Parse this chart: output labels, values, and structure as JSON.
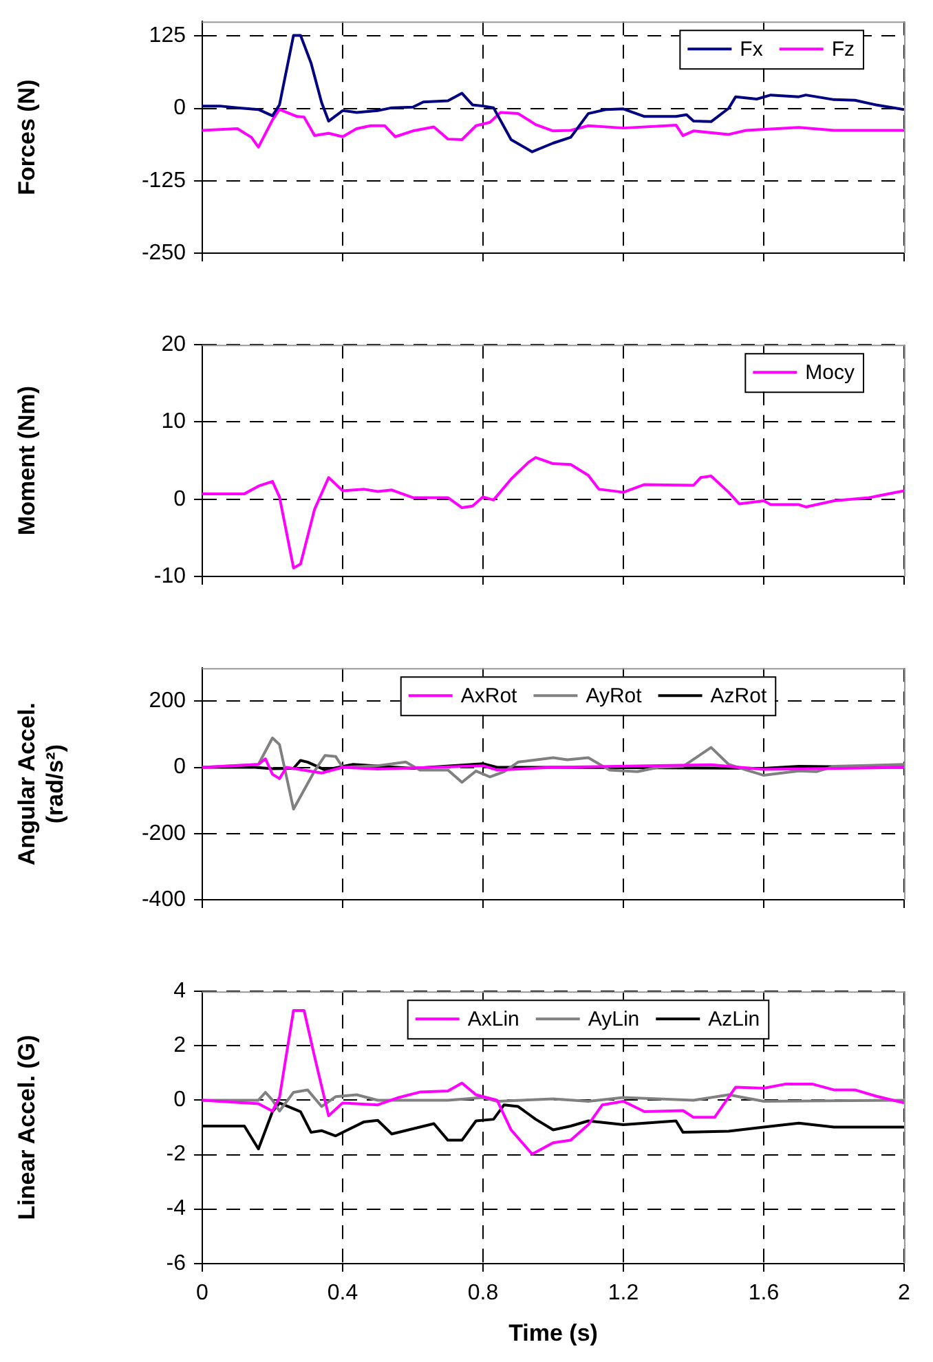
{
  "chart_data": [
    {
      "type": "line",
      "ylabel": "Forces (N)",
      "xlim": [
        0,
        2
      ],
      "xticks": [
        0,
        0.4,
        0.8,
        1.2,
        1.6,
        2
      ],
      "ylim": [
        -250,
        150
      ],
      "yticks": [
        -250,
        -125,
        0,
        125
      ],
      "grid": true,
      "legend": "top right",
      "tick_labels": "y",
      "marker": "none",
      "line_style": "solid",
      "series": [
        {
          "name": "Fx",
          "color": "#000080",
          "x": [
            0,
            0.05,
            0.1,
            0.16,
            0.2,
            0.22,
            0.26,
            0.28,
            0.31,
            0.34,
            0.36,
            0.4,
            0.44,
            0.5,
            0.54,
            0.6,
            0.63,
            0.7,
            0.74,
            0.77,
            0.8,
            0.83,
            0.88,
            0.94,
            1.0,
            1.05,
            1.1,
            1.15,
            1.2,
            1.26,
            1.35,
            1.38,
            1.4,
            1.45,
            1.5,
            1.52,
            1.58,
            1.62,
            1.7,
            1.72,
            1.8,
            1.86,
            1.92,
            2.0
          ],
          "values": [
            4,
            4,
            1,
            -2,
            -13,
            6,
            126,
            126,
            78,
            10,
            -22,
            -4,
            -7,
            -4,
            1,
            2,
            11,
            13,
            26,
            6,
            4,
            1,
            -54,
            -75,
            -60,
            -50,
            -9,
            -2,
            -1,
            -14,
            -14,
            -11,
            -22,
            -23,
            0,
            20,
            16,
            23,
            20,
            23,
            15,
            14,
            6,
            -2
          ]
        },
        {
          "name": "Fz",
          "color": "#ff00ff",
          "x": [
            0,
            0.1,
            0.14,
            0.16,
            0.2,
            0.22,
            0.27,
            0.29,
            0.32,
            0.36,
            0.4,
            0.44,
            0.48,
            0.52,
            0.55,
            0.6,
            0.66,
            0.7,
            0.74,
            0.78,
            0.82,
            0.85,
            0.9,
            0.95,
            1.0,
            1.05,
            1.1,
            1.2,
            1.35,
            1.37,
            1.4,
            1.5,
            1.55,
            1.7,
            1.8,
            2.0
          ],
          "values": [
            -38,
            -35,
            -50,
            -67,
            -20,
            -2,
            -14,
            -15,
            -47,
            -43,
            -49,
            -35,
            -30,
            -30,
            -49,
            -39,
            -32,
            -53,
            -54,
            -30,
            -24,
            -7,
            -9,
            -28,
            -39,
            -38,
            -30,
            -34,
            -29,
            -47,
            -39,
            -45,
            -38,
            -33,
            -38,
            -38
          ]
        }
      ]
    },
    {
      "type": "line",
      "ylabel": "Moment (Nm)",
      "xlim": [
        0,
        2
      ],
      "xticks": [
        0,
        0.4,
        0.8,
        1.2,
        1.6,
        2
      ],
      "ylim": [
        -10,
        20
      ],
      "yticks": [
        -10,
        0,
        10,
        20
      ],
      "grid": true,
      "legend": "top right",
      "tick_labels": "y",
      "marker": "none",
      "line_style": "solid",
      "series": [
        {
          "name": "Mocy",
          "color": "#ff00ff",
          "x": [
            0,
            0.12,
            0.16,
            0.2,
            0.22,
            0.26,
            0.28,
            0.32,
            0.36,
            0.4,
            0.46,
            0.5,
            0.54,
            0.6,
            0.7,
            0.74,
            0.77,
            0.8,
            0.83,
            0.88,
            0.93,
            0.95,
            1.0,
            1.05,
            1.1,
            1.13,
            1.2,
            1.26,
            1.4,
            1.42,
            1.45,
            1.5,
            1.53,
            1.6,
            1.62,
            1.7,
            1.72,
            1.8,
            1.9,
            2.0
          ],
          "values": [
            0.7,
            0.7,
            1.7,
            2.3,
            0.3,
            -8.9,
            -8.4,
            -1.3,
            2.8,
            1.1,
            1.3,
            1.0,
            1.2,
            0.2,
            0.2,
            -1.1,
            -0.9,
            0.3,
            -0.1,
            2.6,
            4.8,
            5.4,
            4.6,
            4.5,
            3.1,
            1.3,
            0.9,
            1.9,
            1.8,
            2.8,
            3.0,
            0.9,
            -0.6,
            -0.2,
            -0.7,
            -0.7,
            -1.0,
            -0.2,
            0.2,
            1.1
          ]
        }
      ]
    },
    {
      "type": "line",
      "ylabel": "Angular Accel. (rad/s²)",
      "xlim": [
        0,
        2
      ],
      "xticks": [
        0,
        0.4,
        0.8,
        1.2,
        1.6,
        2
      ],
      "ylim": [
        -400,
        300
      ],
      "yticks": [
        -400,
        -200,
        0,
        200
      ],
      "grid": true,
      "legend": "top",
      "tick_labels": "y",
      "marker": "none",
      "line_style": "solid",
      "series": [
        {
          "name": "AxRot",
          "color": "#ff00ff",
          "x": [
            0,
            0.16,
            0.18,
            0.2,
            0.22,
            0.24,
            0.34,
            0.4,
            0.5,
            0.8,
            0.84,
            1.0,
            1.45,
            1.6,
            2.0
          ],
          "values": [
            0,
            9,
            26,
            -21,
            -34,
            0,
            -17,
            0,
            -5,
            5,
            -8,
            0,
            8,
            -6,
            0
          ]
        },
        {
          "name": "AyRot",
          "color": "#808080",
          "x": [
            0,
            0.16,
            0.2,
            0.22,
            0.26,
            0.32,
            0.35,
            0.38,
            0.4,
            0.5,
            0.58,
            0.62,
            0.7,
            0.74,
            0.78,
            0.82,
            0.86,
            0.9,
            1.0,
            1.04,
            1.1,
            1.16,
            1.24,
            1.3,
            1.37,
            1.45,
            1.5,
            1.55,
            1.6,
            1.7,
            1.75,
            1.8,
            2.0
          ],
          "values": [
            0,
            9,
            89,
            69,
            -126,
            -11,
            36,
            33,
            0,
            5,
            16,
            -8,
            -8,
            -45,
            -11,
            -29,
            -13,
            16,
            29,
            23,
            29,
            -8,
            -13,
            0,
            3,
            60,
            9,
            -8,
            -24,
            -11,
            -13,
            3,
            9
          ]
        },
        {
          "name": "AzRot",
          "color": "#000000",
          "x": [
            0,
            0.15,
            0.2,
            0.26,
            0.28,
            0.3,
            0.35,
            0.43,
            0.6,
            0.8,
            0.84,
            1.0,
            1.6,
            1.7,
            2.0
          ],
          "values": [
            0,
            0,
            -4,
            -3,
            21,
            16,
            -8,
            9,
            -3,
            11,
            0,
            0,
            -3,
            3,
            0
          ]
        }
      ]
    },
    {
      "type": "line",
      "xlabel": "Time (s)",
      "ylabel": "Linear Accel. (G)",
      "xlim": [
        0,
        2
      ],
      "xticks": [
        0,
        0.4,
        0.8,
        1.2,
        1.6,
        2
      ],
      "ylim": [
        -6,
        4
      ],
      "yticks": [
        -6,
        -4,
        -2,
        0,
        2,
        4
      ],
      "grid": true,
      "legend": "top",
      "marker": "none",
      "line_style": "solid",
      "series": [
        {
          "name": "AxLin",
          "color": "#ff00ff",
          "x": [
            0,
            0.16,
            0.2,
            0.22,
            0.26,
            0.29,
            0.32,
            0.36,
            0.4,
            0.5,
            0.56,
            0.62,
            0.7,
            0.74,
            0.78,
            0.84,
            0.88,
            0.94,
            1.0,
            1.05,
            1.1,
            1.14,
            1.2,
            1.26,
            1.37,
            1.4,
            1.46,
            1.52,
            1.6,
            1.66,
            1.74,
            1.8,
            1.86,
            1.92,
            2.0
          ],
          "values": [
            0,
            -0.13,
            -0.4,
            0.1,
            3.3,
            3.3,
            1.6,
            -0.57,
            -0.1,
            -0.17,
            0.1,
            0.3,
            0.34,
            0.63,
            0.2,
            0,
            -1.09,
            -1.98,
            -1.56,
            -1.47,
            -0.9,
            -0.17,
            -0.04,
            -0.42,
            -0.38,
            -0.63,
            -0.63,
            0.48,
            0.44,
            0.59,
            0.59,
            0.38,
            0.38,
            0.15,
            -0.1
          ]
        },
        {
          "name": "AyLin",
          "color": "#808080",
          "x": [
            0,
            0.16,
            0.18,
            0.2,
            0.22,
            0.26,
            0.3,
            0.34,
            0.38,
            0.44,
            0.5,
            0.7,
            0.8,
            0.84,
            1.0,
            1.1,
            1.2,
            1.4,
            1.5,
            1.6,
            2.0
          ],
          "values": [
            0,
            0,
            0.29,
            0,
            -0.4,
            0.29,
            0.38,
            -0.23,
            0.13,
            0.2,
            0,
            0,
            0.1,
            -0.04,
            0.05,
            -0.04,
            0.1,
            0,
            0.2,
            -0.04,
            0
          ]
        },
        {
          "name": "AzLin",
          "color": "#000000",
          "x": [
            0,
            0.12,
            0.16,
            0.2,
            0.22,
            0.28,
            0.31,
            0.34,
            0.38,
            0.46,
            0.5,
            0.54,
            0.6,
            0.66,
            0.7,
            0.74,
            0.78,
            0.83,
            0.86,
            0.9,
            0.95,
            1.0,
            1.05,
            1.1,
            1.2,
            1.35,
            1.37,
            1.5,
            1.6,
            1.7,
            1.8,
            2.0
          ],
          "values": [
            -0.95,
            -0.95,
            -1.79,
            -0.42,
            -0.1,
            -0.42,
            -1.18,
            -1.12,
            -1.31,
            -0.8,
            -0.74,
            -1.24,
            -1.05,
            -0.86,
            -1.47,
            -1.47,
            -0.76,
            -0.7,
            -0.17,
            -0.23,
            -0.7,
            -1.09,
            -0.95,
            -0.76,
            -0.9,
            -0.76,
            -1.18,
            -1.14,
            -0.99,
            -0.84,
            -0.99,
            -0.99
          ]
        }
      ]
    }
  ]
}
